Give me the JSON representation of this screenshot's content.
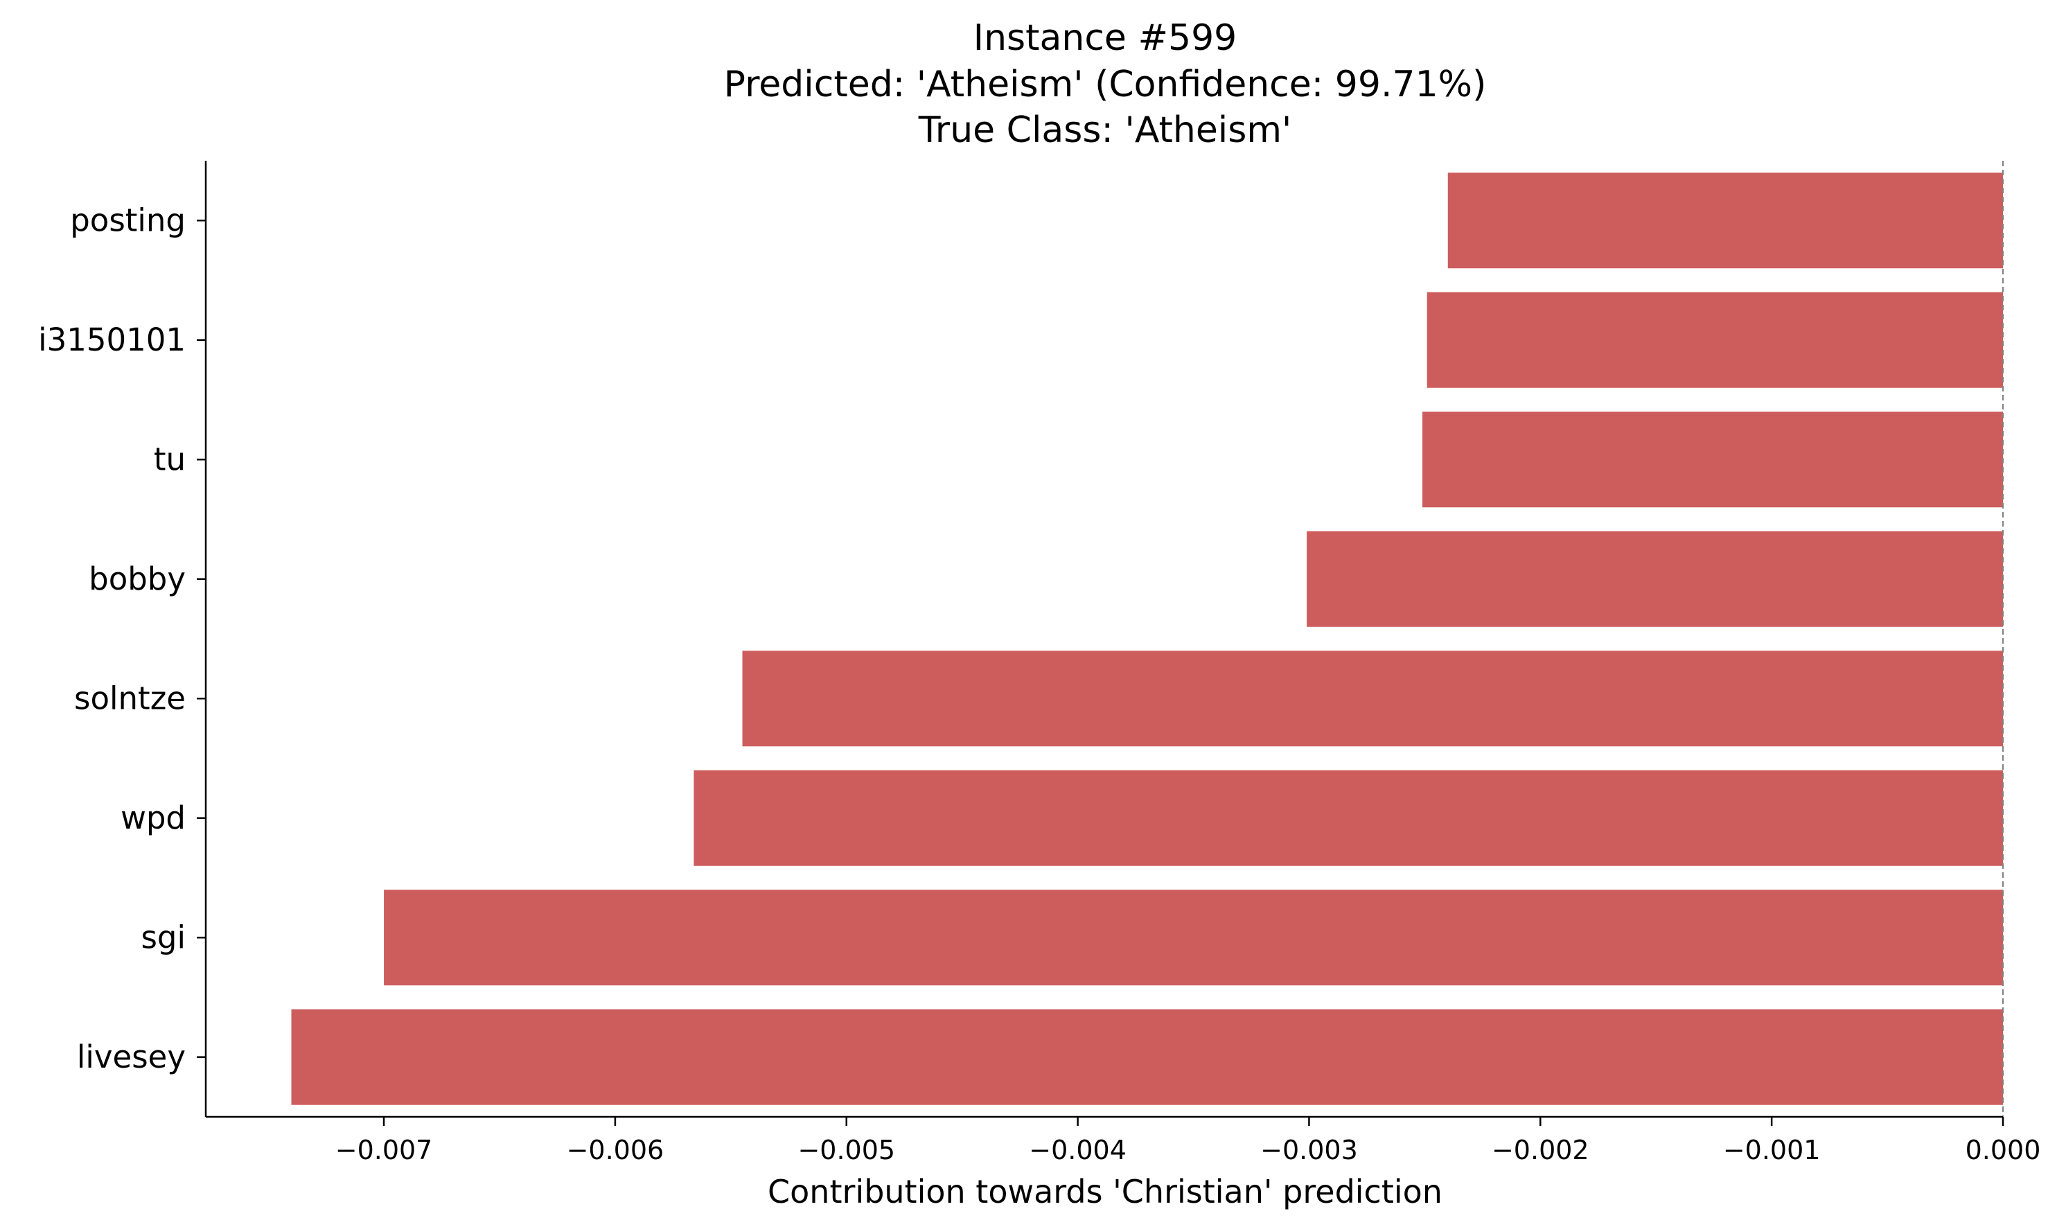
{
  "chart_data": {
    "type": "bar",
    "orientation": "horizontal",
    "title_lines": [
      "Instance #599",
      "Predicted: 'Atheism' (Confidence: 99.71%)",
      "True Class: 'Atheism'"
    ],
    "xlabel": "Contribution towards 'Christian' prediction",
    "ylabel": "",
    "categories": [
      "posting",
      "i3150101",
      "tu",
      "bobby",
      "solntze",
      "wpd",
      "sgi",
      "livesey"
    ],
    "values": [
      -0.0024,
      -0.00249,
      -0.00251,
      -0.00301,
      -0.00545,
      -0.00566,
      -0.007,
      -0.0074
    ],
    "xlim": [
      -0.00777,
      0.0
    ],
    "xticks": [
      -0.007,
      -0.006,
      -0.005,
      -0.004,
      -0.003,
      -0.002,
      -0.001,
      0.0
    ],
    "xtick_labels": [
      "−0.007",
      "−0.006",
      "−0.005",
      "−0.004",
      "−0.003",
      "−0.002",
      "−0.001",
      "0.000"
    ],
    "bar_color": "#cd5c5c",
    "zero_line": true,
    "grid": false,
    "legend": "none"
  }
}
